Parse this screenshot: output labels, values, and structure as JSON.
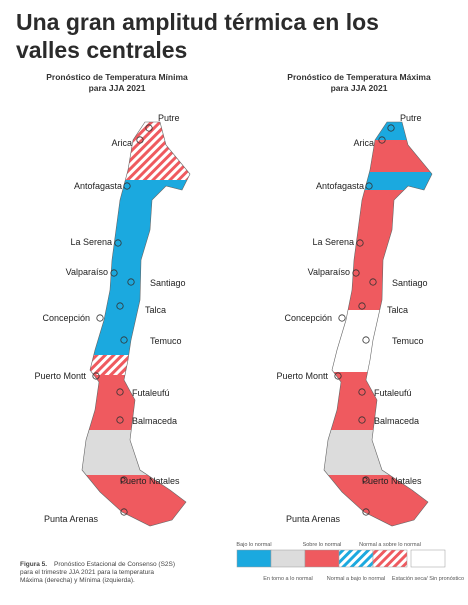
{
  "title": [
    "Una gran amplitud térmica en los",
    "valles centrales"
  ],
  "maps": [
    {
      "title": [
        "Pronóstico de Temperatura Mínima",
        "para JJA 2021"
      ],
      "cities": [
        "Putre",
        "Arica",
        "Antofagasta",
        "La Serena",
        "Valparaíso",
        "Santiago",
        "Talca",
        "Concepción",
        "Temuco",
        "Puerto Montt",
        "Futaleufú",
        "Balmaceda",
        "Puerto Natales",
        "Punta Arenas"
      ]
    },
    {
      "title": [
        "Pronóstico de Temperatura Máxima",
        "para JJA 2021"
      ],
      "cities": [
        "Putre",
        "Arica",
        "Antofagasta",
        "La Serena",
        "Valparaíso",
        "Santiago",
        "Talca",
        "Concepción",
        "Temuco",
        "Puerto Montt",
        "Futaleufú",
        "Balmaceda",
        "Puerto Natales",
        "Punta Arenas"
      ]
    }
  ],
  "legend": [
    "Bajo lo normal",
    "En torno a lo normal",
    "Sobre lo normal",
    "Normal a bajo lo normal",
    "Normal a sobre lo normal",
    "Estación seca/ Sin pronóstico"
  ],
  "caption": {
    "label": "Figura 5.",
    "text": [
      "Pronóstico Estacional de Consenso (S2S)",
      "para el trimestre JJA 2021 para la temperatura",
      "Máxima (derecha) y Mínima (izquierda)."
    ]
  }
}
